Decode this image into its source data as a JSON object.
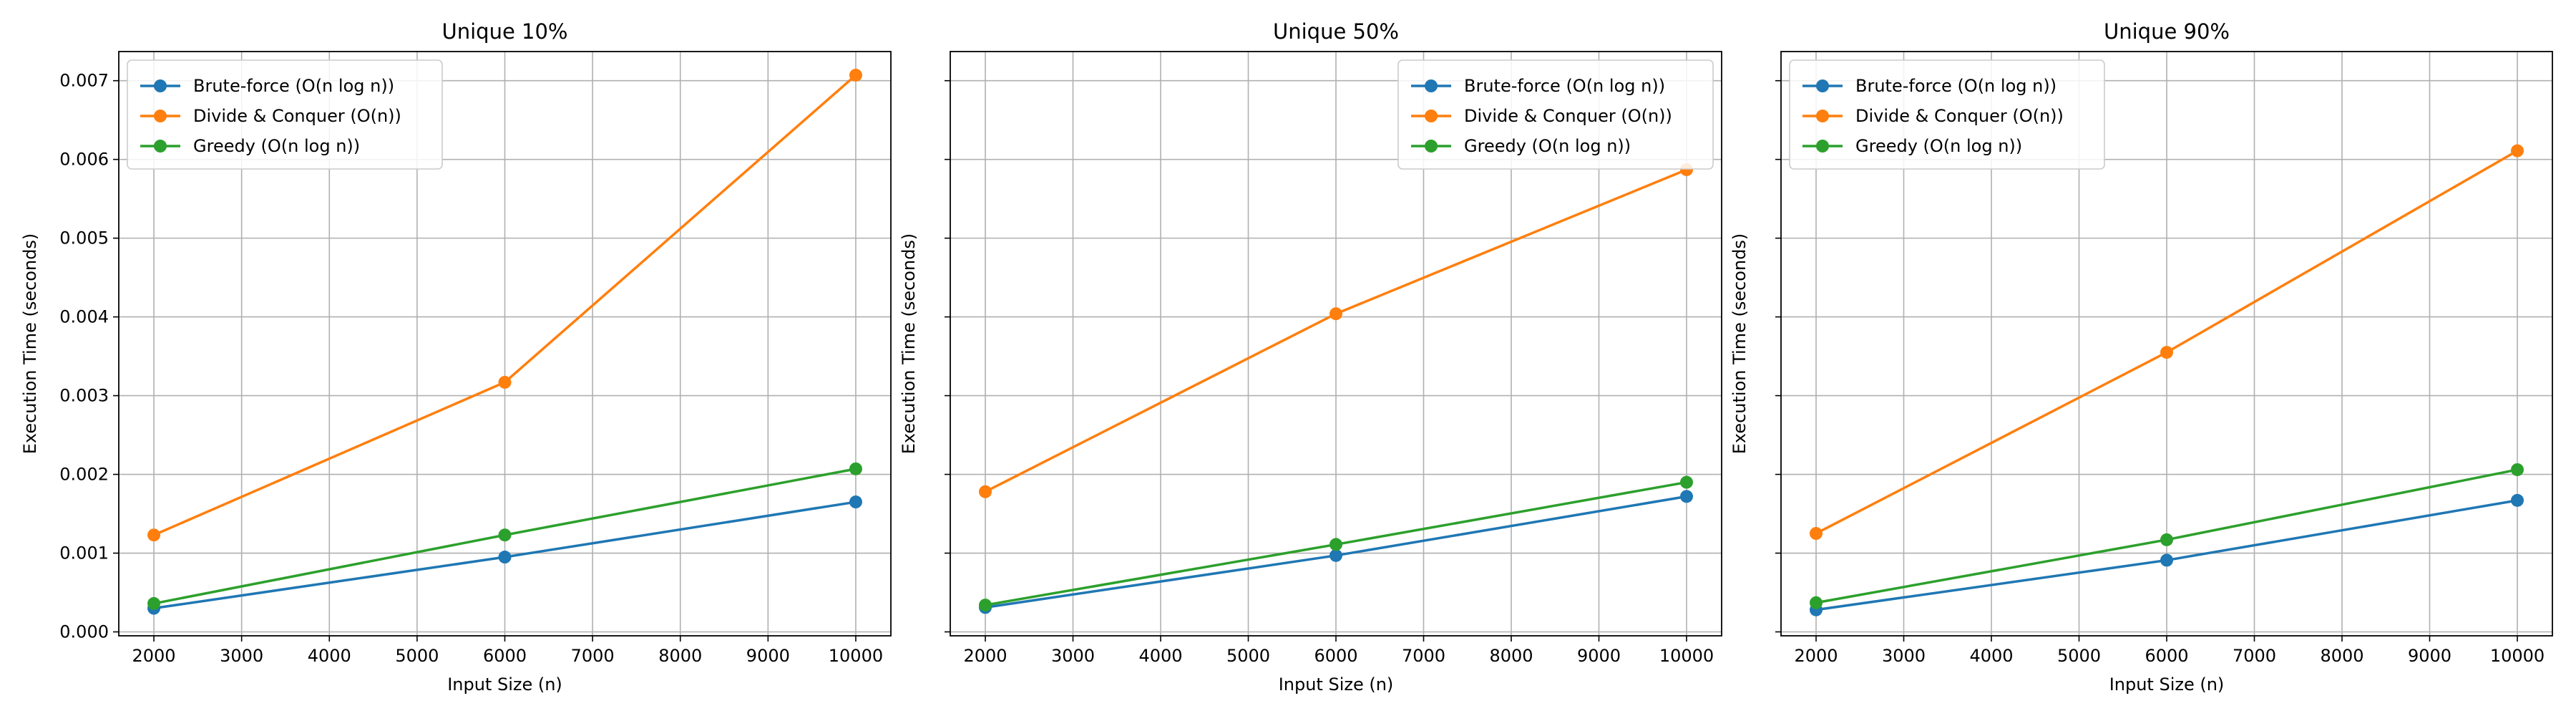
{
  "chart_data": [
    {
      "type": "line",
      "title": "Unique 10%",
      "xlabel": "Input Size (n)",
      "ylabel": "Execution Time (seconds)",
      "x": [
        2000,
        6000,
        10000
      ],
      "xticks": [
        2000,
        3000,
        4000,
        5000,
        6000,
        7000,
        8000,
        9000,
        10000
      ],
      "yticks": [
        "0.000",
        "0.001",
        "0.002",
        "0.003",
        "0.004",
        "0.005",
        "0.006",
        "0.007"
      ],
      "ylim": [
        -5e-05,
        0.00737
      ],
      "xlim": [
        1600,
        10400
      ],
      "grid": true,
      "legend_position": "top-left",
      "series": [
        {
          "name": "Brute-force (O(n log n))",
          "color": "#1f77b4",
          "values": [
            0.0003,
            0.00095,
            0.00165
          ]
        },
        {
          "name": "Divide & Conquer (O(n))",
          "color": "#ff7f0e",
          "values": [
            0.00123,
            0.00317,
            0.00707
          ]
        },
        {
          "name": "Greedy (O(n log n))",
          "color": "#2ca02c",
          "values": [
            0.00036,
            0.00123,
            0.00207
          ]
        }
      ]
    },
    {
      "type": "line",
      "title": "Unique 50%",
      "xlabel": "Input Size (n)",
      "ylabel": "Execution Time (seconds)",
      "x": [
        2000,
        6000,
        10000
      ],
      "xticks": [
        2000,
        3000,
        4000,
        5000,
        6000,
        7000,
        8000,
        9000,
        10000
      ],
      "yticks": [
        "0.000",
        "0.001",
        "0.002",
        "0.003",
        "0.004",
        "0.005",
        "0.006",
        "0.007"
      ],
      "ylim": [
        -5e-05,
        0.00737
      ],
      "xlim": [
        1600,
        10400
      ],
      "grid": true,
      "legend_position": "top-right",
      "series": [
        {
          "name": "Brute-force (O(n log n))",
          "color": "#1f77b4",
          "values": [
            0.00031,
            0.00097,
            0.00172
          ]
        },
        {
          "name": "Divide & Conquer (O(n))",
          "color": "#ff7f0e",
          "values": [
            0.00178,
            0.00404,
            0.00587
          ]
        },
        {
          "name": "Greedy (O(n log n))",
          "color": "#2ca02c",
          "values": [
            0.00034,
            0.00111,
            0.0019
          ]
        }
      ]
    },
    {
      "type": "line",
      "title": "Unique 90%",
      "xlabel": "Input Size (n)",
      "ylabel": "Execution Time (seconds)",
      "x": [
        2000,
        6000,
        10000
      ],
      "xticks": [
        2000,
        3000,
        4000,
        5000,
        6000,
        7000,
        8000,
        9000,
        10000
      ],
      "yticks": [
        "0.000",
        "0.001",
        "0.002",
        "0.003",
        "0.004",
        "0.005",
        "0.006",
        "0.007"
      ],
      "ylim": [
        -5e-05,
        0.00737
      ],
      "xlim": [
        1600,
        10400
      ],
      "grid": true,
      "legend_position": "top-left",
      "series": [
        {
          "name": "Brute-force (O(n log n))",
          "color": "#1f77b4",
          "values": [
            0.00028,
            0.00091,
            0.00167
          ]
        },
        {
          "name": "Divide & Conquer (O(n))",
          "color": "#ff7f0e",
          "values": [
            0.00125,
            0.00355,
            0.00611
          ]
        },
        {
          "name": "Greedy (O(n log n))",
          "color": "#2ca02c",
          "values": [
            0.00037,
            0.00117,
            0.00206
          ]
        }
      ]
    }
  ]
}
